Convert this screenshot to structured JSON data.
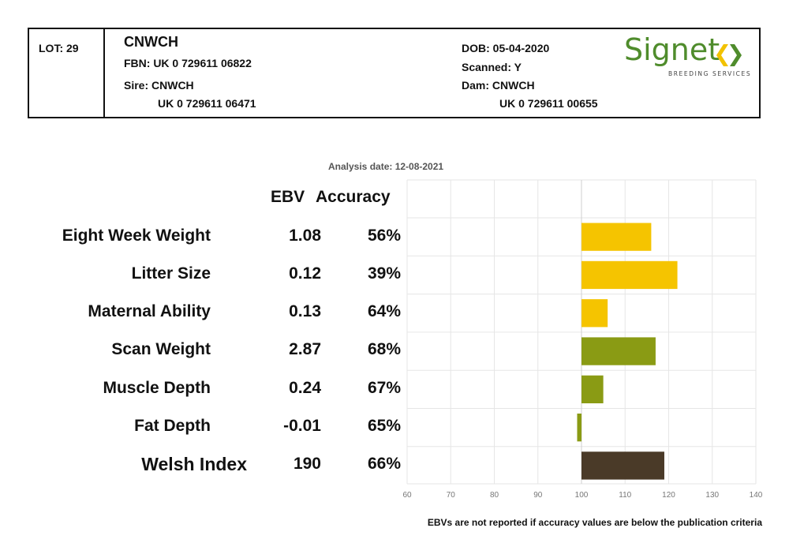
{
  "header": {
    "lot": "LOT: 29",
    "name": "CNWCH",
    "fbn": "FBN: UK 0 729611 06822",
    "sire_label": "Sire: CNWCH",
    "sire_id": "UK 0 729611 06471",
    "dob": "DOB: 05-04-2020",
    "scanned": "Scanned: Y",
    "dam_label": "Dam: CNWCH",
    "dam_id": "UK 0 729611 00655"
  },
  "logo": {
    "word": "Signet",
    "subtitle": "BREEDING SERVICES",
    "colors": {
      "word": "#4f8c2c",
      "chevron_left": "#f2c200",
      "chevron_right": "#4f8c2c"
    }
  },
  "analysis_date": "Analysis date: 12-08-2021",
  "columns": {
    "ebv": "EBV",
    "accuracy": "Accuracy"
  },
  "rows": [
    {
      "label": "Eight Week Weight",
      "ebv": "1.08",
      "accuracy": "56%"
    },
    {
      "label": "Litter Size",
      "ebv": "0.12",
      "accuracy": "39%"
    },
    {
      "label": "Maternal Ability",
      "ebv": "0.13",
      "accuracy": "64%"
    },
    {
      "label": "Scan Weight",
      "ebv": "2.87",
      "accuracy": "68%"
    },
    {
      "label": "Muscle Depth",
      "ebv": "0.24",
      "accuracy": "67%"
    },
    {
      "label": "Fat Depth",
      "ebv": "-0.01",
      "accuracy": "65%"
    },
    {
      "label": "Welsh Index",
      "ebv": "190",
      "accuracy": "66%"
    }
  ],
  "footnote": "EBVs are not reported if accuracy values are below the publication criteria",
  "chart_data": {
    "type": "bar",
    "orientation": "horizontal",
    "baseline": 100,
    "xlim": [
      60,
      140
    ],
    "xticks": [
      "60",
      "70",
      "80",
      "90",
      "100",
      "110",
      "120",
      "130",
      "140"
    ],
    "grid": true,
    "categories": [
      "Eight Week Weight",
      "Litter Size",
      "Maternal Ability",
      "Scan Weight",
      "Muscle Depth",
      "Fat Depth",
      "Welsh Index"
    ],
    "values": [
      116,
      122,
      106,
      117,
      105,
      99,
      119
    ],
    "colors": [
      "#f5c400",
      "#f5c400",
      "#f5c400",
      "#8a9b14",
      "#8a9b14",
      "#8a9b14",
      "#4a3a28"
    ]
  }
}
